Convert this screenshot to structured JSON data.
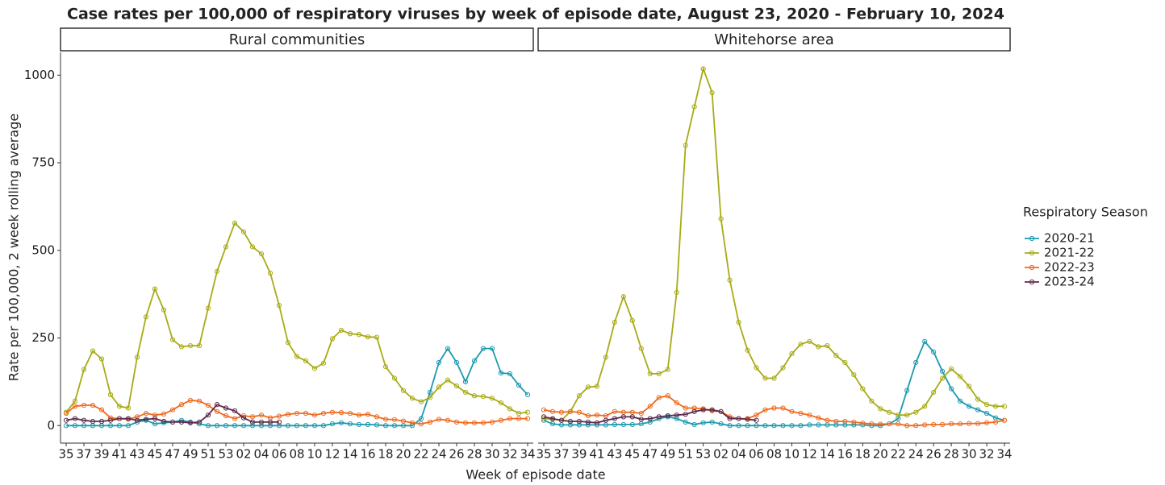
{
  "chart_data": {
    "type": "line",
    "title": "Case rates per 100,000 of respiratory viruses by week of episode date, August 23, 2020 - February 10, 2024",
    "x_label": "Week of episode date",
    "y_label": "Rate per 100,000, 2 week rolling average",
    "legend_title": "Respiratory Season",
    "categories": [
      "35",
      null,
      "37",
      null,
      "39",
      null,
      "41",
      null,
      "43",
      null,
      "45",
      null,
      "47",
      null,
      "49",
      null,
      "51",
      null,
      "53",
      null,
      "02",
      null,
      "04",
      null,
      "06",
      null,
      "08",
      null,
      "10",
      null,
      "12",
      null,
      "14",
      null,
      "16",
      null,
      "18",
      null,
      "20",
      null,
      "22",
      null,
      "24",
      null,
      "26",
      null,
      "28",
      null,
      "30",
      null,
      "32",
      null,
      "34"
    ],
    "ylim": [
      -50,
      1065
    ],
    "yticks": [
      0,
      250,
      500,
      750,
      1000
    ],
    "panels": [
      {
        "title": "Rural communities",
        "series": [
          {
            "name": "2020-21",
            "color": "#1a9ab0",
            "values": [
              0,
              0,
              0,
              0,
              0,
              0,
              0,
              0,
              10,
              15,
              5,
              8,
              10,
              15,
              10,
              5,
              0,
              0,
              0,
              0,
              0,
              0,
              0,
              0,
              0,
              0,
              0,
              0,
              0,
              0,
              5,
              8,
              5,
              3,
              3,
              2,
              0,
              0,
              0,
              0,
              20,
              95,
              180,
              220,
              180,
              125,
              185,
              220,
              220,
              150,
              148,
              115,
              88
            ]
          },
          {
            "name": "2021-22",
            "color": "#a8ab14",
            "values": [
              38,
              70,
              160,
              213,
              190,
              88,
              55,
              50,
              195,
              310,
              390,
              330,
              245,
              225,
              228,
              228,
              335,
              440,
              510,
              578,
              553,
              510,
              490,
              435,
              343,
              237,
              197,
              185,
              163,
              178,
              248,
              272,
              262,
              260,
              253,
              252,
              168,
              135,
              100,
              78,
              68,
              80,
              110,
              130,
              113,
              95,
              85,
              83,
              78,
              65,
              48,
              35,
              38
            ]
          },
          {
            "name": "2022-23",
            "color": "#ee6a1f",
            "values": [
              35,
              55,
              58,
              58,
              45,
              22,
              20,
              18,
              25,
              35,
              30,
              33,
              45,
              60,
              72,
              70,
              58,
              40,
              28,
              20,
              28,
              25,
              30,
              22,
              27,
              32,
              35,
              35,
              30,
              35,
              38,
              37,
              35,
              30,
              32,
              25,
              18,
              17,
              13,
              8,
              5,
              10,
              18,
              15,
              10,
              8,
              8,
              8,
              10,
              15,
              20,
              20,
              20
            ]
          },
          {
            "name": "2023-24",
            "color": "#5e2a4c",
            "values": [
              15,
              20,
              15,
              12,
              12,
              15,
              20,
              20,
              15,
              18,
              20,
              12,
              10,
              10,
              8,
              10,
              30,
              60,
              50,
              42,
              22,
              10,
              10,
              10,
              10,
              null,
              null,
              null,
              null,
              null,
              null,
              null,
              null,
              null,
              null,
              null,
              null,
              null,
              null,
              null,
              null,
              null,
              null,
              null,
              null,
              null,
              null,
              null,
              null,
              null,
              null,
              null,
              null
            ]
          }
        ]
      },
      {
        "title": "Whitehorse area",
        "series": [
          {
            "name": "2020-21",
            "color": "#1a9ab0",
            "values": [
              15,
              5,
              2,
              2,
              2,
              2,
              2,
              2,
              3,
              3,
              3,
              5,
              10,
              20,
              25,
              20,
              10,
              3,
              8,
              10,
              5,
              0,
              0,
              0,
              0,
              0,
              0,
              0,
              0,
              0,
              2,
              2,
              2,
              2,
              2,
              2,
              2,
              0,
              0,
              5,
              20,
              100,
              180,
              240,
              210,
              155,
              105,
              70,
              55,
              45,
              35,
              22,
              15
            ]
          },
          {
            "name": "2021-22",
            "color": "#a8ab14",
            "values": [
              20,
              18,
              15,
              40,
              85,
              110,
              112,
              195,
              295,
              368,
              300,
              220,
              148,
              148,
              160,
              380,
              800,
              910,
              1018,
              950,
              590,
              415,
              295,
              215,
              165,
              135,
              135,
              165,
              205,
              232,
              240,
              225,
              228,
              200,
              180,
              145,
              105,
              70,
              48,
              38,
              30,
              30,
              38,
              55,
              95,
              135,
              162,
              140,
              112,
              75,
              60,
              55,
              55
            ]
          },
          {
            "name": "2022-23",
            "color": "#ee6a1f",
            "values": [
              45,
              40,
              38,
              40,
              38,
              28,
              30,
              28,
              40,
              38,
              38,
              35,
              55,
              80,
              85,
              65,
              50,
              50,
              48,
              42,
              40,
              25,
              20,
              20,
              30,
              45,
              50,
              50,
              40,
              35,
              30,
              22,
              15,
              12,
              12,
              10,
              7,
              5,
              4,
              5,
              5,
              0,
              0,
              2,
              3,
              3,
              5,
              5,
              6,
              6,
              8,
              10,
              15
            ]
          },
          {
            "name": "2023-24",
            "color": "#5e2a4c",
            "values": [
              25,
              20,
              15,
              12,
              12,
              10,
              8,
              15,
              20,
              25,
              25,
              18,
              20,
              25,
              28,
              30,
              32,
              40,
              45,
              45,
              40,
              20,
              20,
              18,
              15,
              null,
              null,
              null,
              null,
              null,
              null,
              null,
              null,
              null,
              null,
              null,
              null,
              null,
              null,
              null,
              null,
              null,
              null,
              null,
              null,
              null,
              null,
              null,
              null,
              null,
              null,
              null,
              null
            ]
          }
        ]
      }
    ]
  }
}
